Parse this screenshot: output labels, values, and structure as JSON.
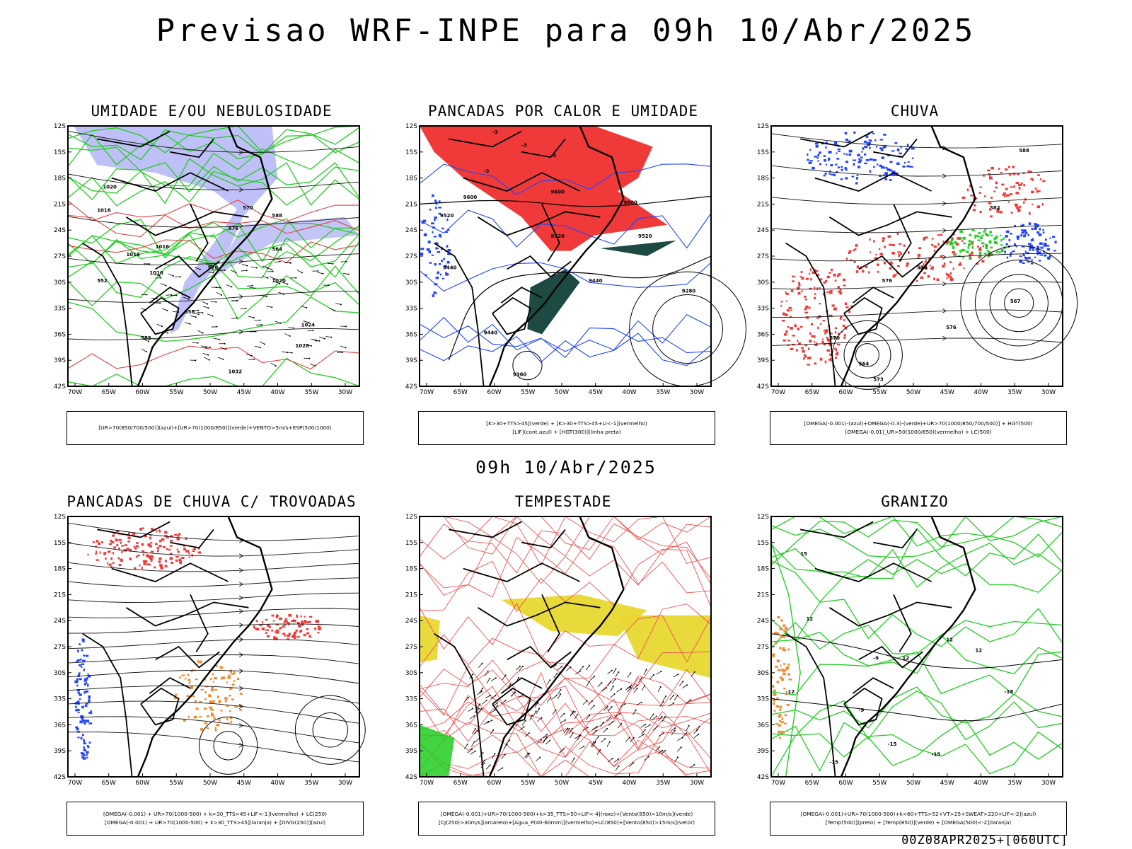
{
  "title": "Previsao WRF-INPE  para 09h 10/Abr/2025",
  "mid_title": "09h 10/Abr/2025",
  "run_info": "00Z08APR2025+[060UTC]",
  "axes": {
    "lat_labels": [
      "12S",
      "15S",
      "18S",
      "21S",
      "24S",
      "27S",
      "30S",
      "33S",
      "36S",
      "39S",
      "42S"
    ],
    "lon_labels": [
      "70W",
      "65W",
      "60W",
      "55W",
      "50W",
      "45W",
      "40W",
      "35W",
      "30W"
    ]
  },
  "colors": {
    "blue_fill": "#8a8cf0",
    "green_line": "#22cc22",
    "red_fill": "#f03a3a",
    "dark_teal": "#1e4a44",
    "blue_line": "#2244ff",
    "yellow_fill": "#e8d830",
    "orange_fill": "#f08a30",
    "red_line": "#f05050"
  },
  "panels": [
    {
      "title": "UMIDADE E/OU NEBULOSIDADE",
      "legend": [
        "[UR>70(850/700/500)](azul)+[UR>70(1000/850)](verde)+VENTO>5m/s+ESP(500/1000)"
      ],
      "contour_labels": [
        "1020",
        "1016",
        "1016",
        "1016",
        "1016",
        "1020",
        "1024",
        "1028",
        "1032",
        "570",
        "576",
        "576",
        "564",
        "558",
        "582",
        "588",
        "552"
      ]
    },
    {
      "title": "PANCADAS POR CALOR E UMIDADE",
      "legend": [
        "[K>30+TTS>45](verde) + [K>30+TTS>45+LI<-1](vermelho)",
        "[LIF](cont.azul) + [HGT(300)](linha preta)"
      ],
      "contour_labels": [
        "9600",
        "9600",
        "9600",
        "9520",
        "9520",
        "9520",
        "9440",
        "9440",
        "9440",
        "9280",
        "9360",
        "-3",
        "-3",
        "-3",
        "-3"
      ]
    },
    {
      "title": "CHUVA",
      "legend": [
        "[OMEGA(-0.001)-(azul)+OMEGA(-0.3)-(verde)+UR>70(1000/850/700/500)] + HGT(500)",
        "[OMEGA(-0.01)_UR>50(1000/850)(vermelho) + LC(500)"
      ],
      "contour_labels": [
        "588",
        "582",
        "576",
        "576",
        "576",
        "570",
        "564",
        "573",
        "567"
      ]
    },
    {
      "title": "PANCADAS DE CHUVA C/ TROVOADAS",
      "legend": [
        "[OMEGA(-0.001) + UR>70(1000-500) + k>30_TTS>45+LIF<-1](vermelho) + LC(250)",
        "[OMEGA(-0.001) + UR>70(1000-500) + k>30_TTS>45](laranja) + [DIVG(250)](azul)"
      ],
      "contour_labels": []
    },
    {
      "title": "TEMPESTADE",
      "legend": [
        "[OMEGA(-0.001)+UR>70(1000-500)+k>35_TTS>50+LIF<-4](roxo)+[Vento(850)>10m/s](verde)",
        "[CJ(250)>30m/s](amarelo)+[Agua_P(40-60mm)](vermelho)+LC(850)+[Vento(850)>15m/s](vetor)"
      ],
      "contour_labels": []
    },
    {
      "title": "GRANIZO",
      "legend": [
        "[OMEGA(-0.001)+UR>70(1000-500)+k<60+TTS>52+VT>25+SWEAT>220+LIF<-2](azul)",
        "[Temp(500)](preto) + [Temp(850)](verde) + [OMEGA(500)<-2](laranja)"
      ],
      "contour_labels": [
        "15",
        "12",
        "12",
        "12",
        "-9",
        "-9",
        "12",
        "-12",
        "-15",
        "-18",
        "-15",
        "-15"
      ]
    }
  ]
}
